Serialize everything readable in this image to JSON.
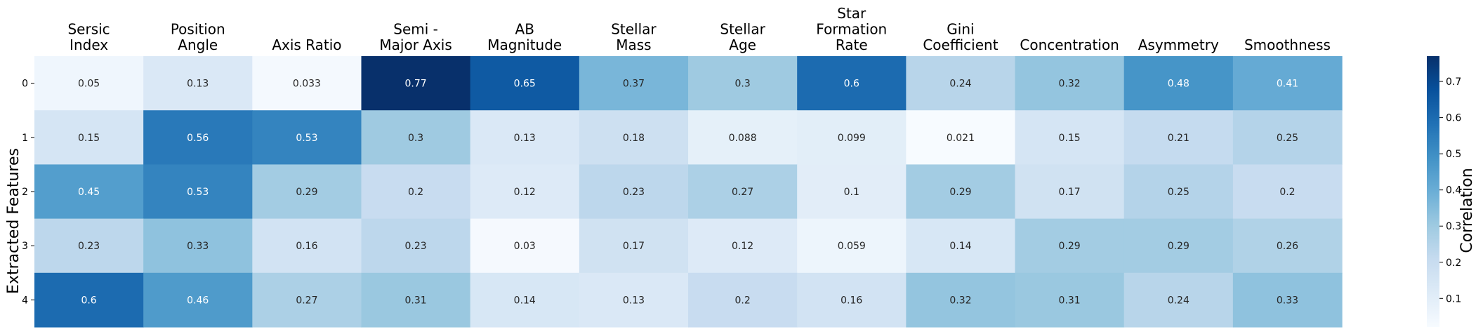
{
  "chart_data": {
    "type": "heatmap",
    "columns": [
      [
        "Sersic",
        "Index"
      ],
      [
        "Position",
        "Angle"
      ],
      [
        "Axis Ratio"
      ],
      [
        "Semi -",
        "Major Axis"
      ],
      [
        "AB",
        "Magnitude"
      ],
      [
        "Stellar",
        "Mass"
      ],
      [
        "Stellar",
        "Age"
      ],
      [
        "Star",
        "Formation",
        "Rate"
      ],
      [
        "Gini",
        "Coefficient"
      ],
      [
        "Concentration"
      ],
      [
        "Asymmetry"
      ],
      [
        "Smoothness"
      ]
    ],
    "rows": [
      "0",
      "1",
      "2",
      "3",
      "4"
    ],
    "values": [
      [
        0.05,
        0.13,
        0.033,
        0.77,
        0.65,
        0.37,
        0.3,
        0.6,
        0.24,
        0.32,
        0.48,
        0.41
      ],
      [
        0.15,
        0.56,
        0.53,
        0.3,
        0.13,
        0.18,
        0.088,
        0.099,
        0.021,
        0.15,
        0.21,
        0.25
      ],
      [
        0.45,
        0.53,
        0.29,
        0.2,
        0.12,
        0.23,
        0.27,
        0.1,
        0.29,
        0.17,
        0.25,
        0.2
      ],
      [
        0.23,
        0.33,
        0.16,
        0.23,
        0.03,
        0.17,
        0.12,
        0.059,
        0.14,
        0.29,
        0.29,
        0.26
      ],
      [
        0.6,
        0.46,
        0.27,
        0.31,
        0.14,
        0.13,
        0.2,
        0.16,
        0.32,
        0.31,
        0.24,
        0.33
      ]
    ],
    "value_labels": [
      [
        "0.05",
        "0.13",
        "0.033",
        "0.77",
        "0.65",
        "0.37",
        "0.3",
        "0.6",
        "0.24",
        "0.32",
        "0.48",
        "0.41"
      ],
      [
        "0.15",
        "0.56",
        "0.53",
        "0.3",
        "0.13",
        "0.18",
        "0.088",
        "0.099",
        "0.021",
        "0.15",
        "0.21",
        "0.25"
      ],
      [
        "0.45",
        "0.53",
        "0.29",
        "0.2",
        "0.12",
        "0.23",
        "0.27",
        "0.1",
        "0.29",
        "0.17",
        "0.25",
        "0.2"
      ],
      [
        "0.23",
        "0.33",
        "0.16",
        "0.23",
        "0.03",
        "0.17",
        "0.12",
        "0.059",
        "0.14",
        "0.29",
        "0.29",
        "0.26"
      ],
      [
        "0.6",
        "0.46",
        "0.27",
        "0.31",
        "0.14",
        "0.13",
        "0.2",
        "0.16",
        "0.32",
        "0.31",
        "0.24",
        "0.33"
      ]
    ],
    "ylabel": "Extracted Features",
    "colorbar": {
      "label": "Correlation",
      "range": [
        0.021,
        0.77
      ],
      "ticks": [
        0.1,
        0.2,
        0.3,
        0.4,
        0.5,
        0.6,
        0.7
      ],
      "tick_labels": [
        "0.1",
        "0.2",
        "0.3",
        "0.4",
        "0.5",
        "0.6",
        "0.7"
      ],
      "colormap": "Blues"
    },
    "colors": {
      "low": "#f7fbff",
      "high": "#08306b",
      "text_dark": "#262626",
      "text_light": "#ffffff"
    }
  }
}
